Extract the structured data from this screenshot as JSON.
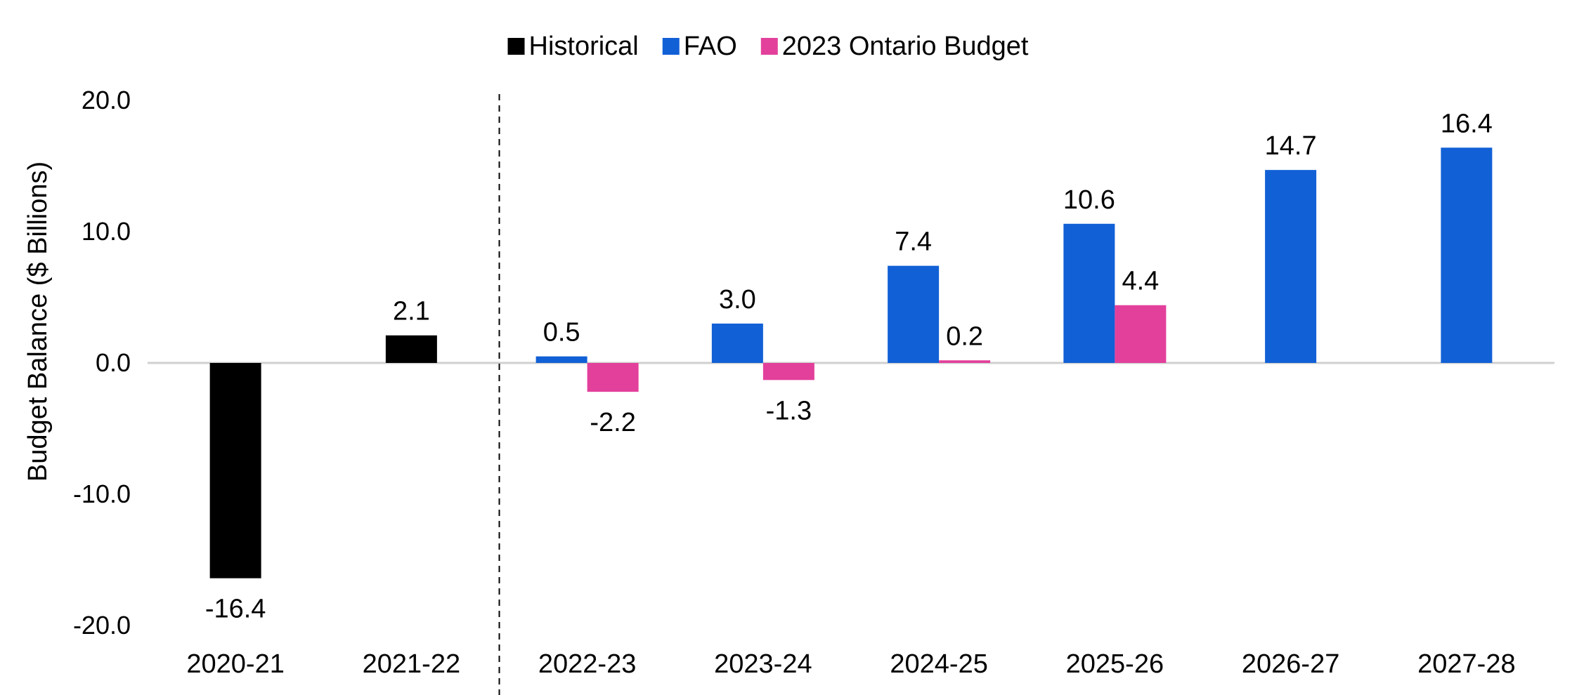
{
  "chart_data": {
    "type": "bar",
    "categories": [
      "2020-21",
      "2021-22",
      "2022-23",
      "2023-24",
      "2024-25",
      "2025-26",
      "2026-27",
      "2027-28"
    ],
    "series": [
      {
        "name": "Historical",
        "color": "#000000",
        "values": [
          -16.4,
          2.1,
          null,
          null,
          null,
          null,
          null,
          null
        ]
      },
      {
        "name": "FAO",
        "color": "#1160D6",
        "values": [
          null,
          null,
          0.5,
          3.0,
          7.4,
          10.6,
          14.7,
          16.4
        ]
      },
      {
        "name": "2023 Ontario Budget",
        "color": "#E2409B",
        "values": [
          null,
          null,
          -2.2,
          -1.3,
          0.2,
          4.4,
          null,
          null
        ]
      }
    ],
    "data_labels": {
      "Historical": [
        "-16.4",
        "2.1",
        "",
        "",
        "",
        "",
        "",
        ""
      ],
      "FAO": [
        "",
        "",
        "0.5",
        "3.0",
        "7.4",
        "10.6",
        "14.7",
        "16.4"
      ],
      "2023 Ontario Budget": [
        "",
        "",
        "-2.2",
        "-1.3",
        "0.2",
        "4.4",
        "",
        ""
      ]
    },
    "y_ticks": [
      "20.0",
      "10.0",
      "0.0",
      "-10.0",
      "-20.0"
    ],
    "ylim": [
      -20,
      20
    ],
    "ylabel": "Budget Balance ($ Billions)",
    "xlabel": "",
    "title": "",
    "legend_position": "top-center",
    "divider_after_category": "2021-22",
    "grid": false
  }
}
